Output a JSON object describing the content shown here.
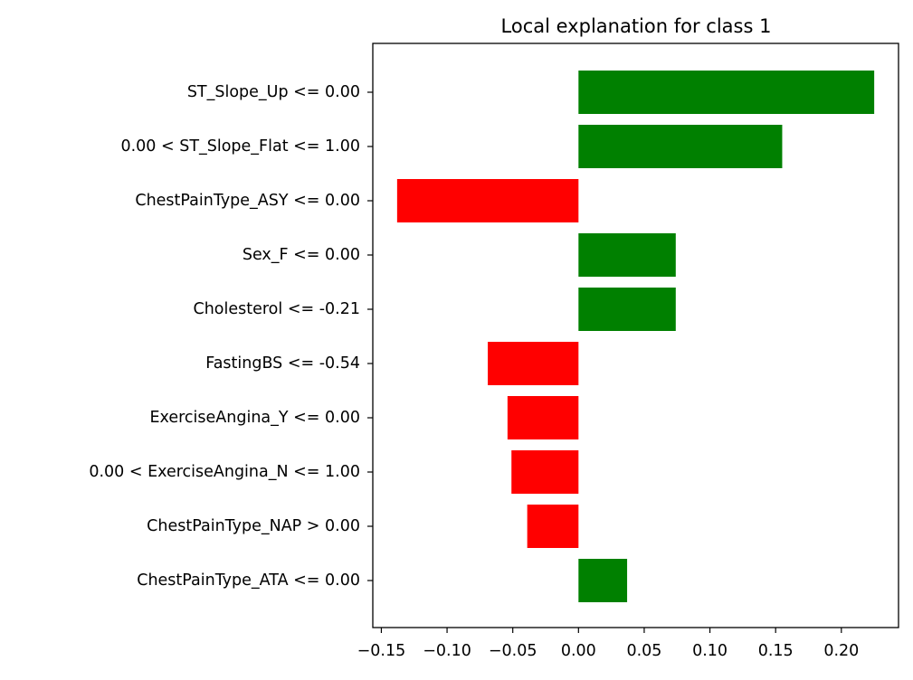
{
  "chart_data": {
    "type": "bar",
    "orientation": "horizontal",
    "title": "Local explanation for class 1",
    "xlabel": "",
    "ylabel": "",
    "categories": [
      "ST_Slope_Up <= 0.00",
      "0.00 < ST_Slope_Flat <= 1.00",
      "ChestPainType_ASY <= 0.00",
      "Sex_F <= 0.00",
      "Cholesterol <= -0.21",
      "FastingBS <= -0.54",
      "ExerciseAngina_Y <= 0.00",
      "0.00 < ExerciseAngina_N <= 1.00",
      "ChestPainType_NAP > 0.00",
      "ChestPainType_ATA <= 0.00"
    ],
    "values": [
      0.225,
      0.155,
      -0.138,
      0.074,
      0.074,
      -0.069,
      -0.054,
      -0.051,
      -0.039,
      0.037
    ],
    "xlim": [
      -0.1565,
      0.2435
    ],
    "xticks": [
      -0.15,
      -0.1,
      -0.05,
      0.0,
      0.05,
      0.1,
      0.15,
      0.2
    ],
    "xtick_labels": [
      "−0.15",
      "−0.10",
      "−0.05",
      "0.00",
      "0.05",
      "0.10",
      "0.15",
      "0.20"
    ],
    "colors": {
      "positive": "#008000",
      "negative": "#ff0000"
    },
    "grid": false,
    "legend": "none"
  }
}
